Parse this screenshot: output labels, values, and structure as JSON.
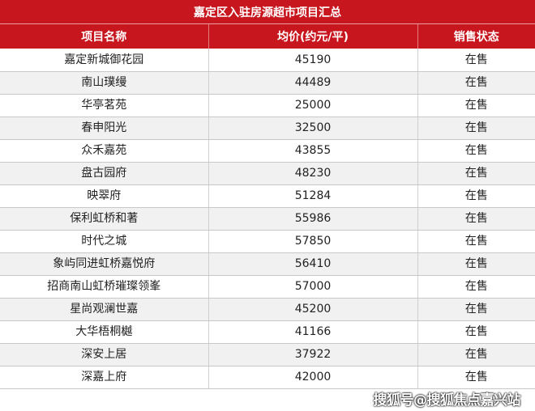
{
  "title": "嘉定区入驻房源超市项目汇总",
  "columns": [
    "项目名称",
    "均价(约元/平)",
    "销售状态"
  ],
  "rows": [
    [
      "嘉定新城御花园",
      "45190",
      "在售"
    ],
    [
      "南山璞缦",
      "44489",
      "在售"
    ],
    [
      "华亭茗苑",
      "25000",
      "在售"
    ],
    [
      "春申阳光",
      "32500",
      "在售"
    ],
    [
      "众禾嘉苑",
      "43855",
      "在售"
    ],
    [
      "盘古园府",
      "48230",
      "在售"
    ],
    [
      "映翠府",
      "51284",
      "在售"
    ],
    [
      "保利虹桥和著",
      "55986",
      "在售"
    ],
    [
      "时代之城",
      "57850",
      "在售"
    ],
    [
      "象屿同进虹桥嘉悦府",
      "56410",
      "在售"
    ],
    [
      "招商南山虹桥璀璨领峯",
      "57000",
      "在售"
    ],
    [
      "星尚观澜世嘉",
      "45200",
      "在售"
    ],
    [
      "大华梧桐樾",
      "41166",
      "在售"
    ],
    [
      "深安上居",
      "37922",
      "在售"
    ],
    [
      "深嘉上府",
      "42000",
      "在售"
    ]
  ],
  "watermark": "搜狐号@搜狐焦点嘉兴站",
  "colors": {
    "header": "#c8161e",
    "alt_row": "#f1f1f1"
  }
}
